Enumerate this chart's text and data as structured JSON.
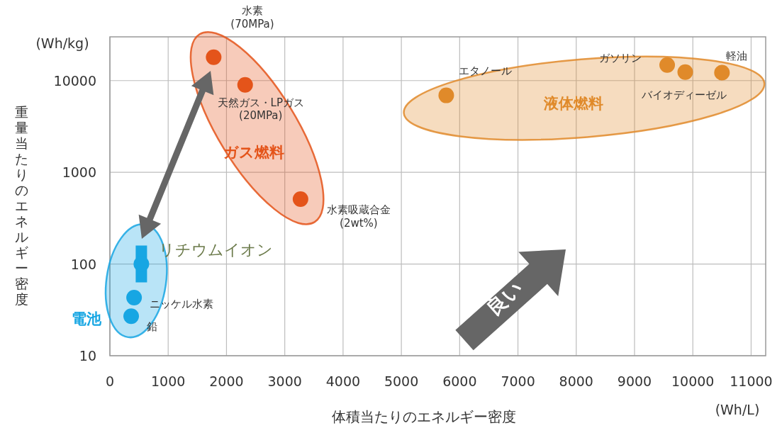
{
  "chart_data": {
    "type": "scatter",
    "xlabel": "体積当たりのエネルギー密度",
    "ylabel": "重量当たりのエネルギー密度",
    "log": "y",
    "xlim": [
      0,
      11250
    ],
    "ylim": [
      10,
      30000
    ],
    "xticks": [
      0,
      1000,
      2000,
      3000,
      4000,
      5000,
      6000,
      7000,
      8000,
      9000,
      10000,
      11000
    ],
    "yticks": [
      10,
      100,
      1000,
      10000
    ],
    "grid": true,
    "legend": false,
    "marker": "circle",
    "series": [
      {
        "name": "電池",
        "color": "#17a6e3",
        "x": [
          540,
          415,
          365
        ],
        "values": [
          100,
          43,
          27
        ],
        "errors": [
          [
            63,
            159
          ],
          null,
          null
        ]
      },
      {
        "name": "ガス燃料",
        "color": "#e4541a",
        "x": [
          1780,
          2320,
          3270
        ],
        "values": [
          18000,
          9000,
          510
        ]
      },
      {
        "name": "液体燃料",
        "color": "#e08a2a",
        "x": [
          5770,
          9560,
          9870,
          10500
        ],
        "values": [
          6900,
          14800,
          12400,
          12200
        ]
      }
    ],
    "annotations": [
      "水素\n(70MPa)",
      {
        "text": "天然ガス・LPガス\n(20MPa)",
        "x": 2320,
        "y": 9000
      },
      {
        "text": "水素吸蔵合金\n(2wt%)",
        "x": 3270,
        "y": 510
      },
      {
        "text": "リチウムイオン",
        "x": 540,
        "y": 100
      },
      {
        "text": "ニッケル水素",
        "x": 415,
        "y": 43
      },
      {
        "text": "鉛",
        "x": 365,
        "y": 27
      },
      {
        "text": "エタノール",
        "x": 5770,
        "y": 6900
      },
      {
        "text": "ガソリン",
        "x": 9560,
        "y": 14800
      },
      {
        "text": "バイオディーゼル",
        "x": 9870,
        "y": 12400
      },
      {
        "text": "軽油",
        "x": 10500,
        "y": 12200
      },
      "(Wh/kg)",
      "(Wh/L)",
      "良い"
    ]
  }
}
